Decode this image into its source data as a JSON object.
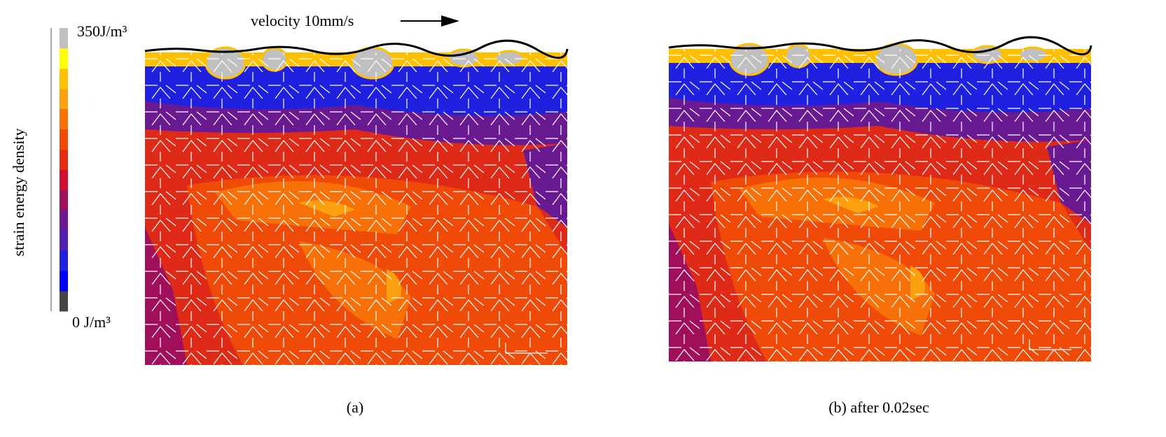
{
  "colorbar": {
    "title": "strain energy density",
    "max_label": "350J/m³",
    "min_label": "0 J/m³",
    "colors": [
      "#454545",
      "#0000ff",
      "#2020e0",
      "#5020b0",
      "#6a1a90",
      "#a0105a",
      "#d01030",
      "#e82a10",
      "#f04a08",
      "#f87008",
      "#fca010",
      "#ffc000",
      "#ffff00",
      "#c0c0c0"
    ]
  },
  "annotation": "velocity 10mm/s",
  "panels": [
    {
      "caption": "(a)"
    },
    {
      "caption": "(b) after 0.02sec"
    }
  ]
}
